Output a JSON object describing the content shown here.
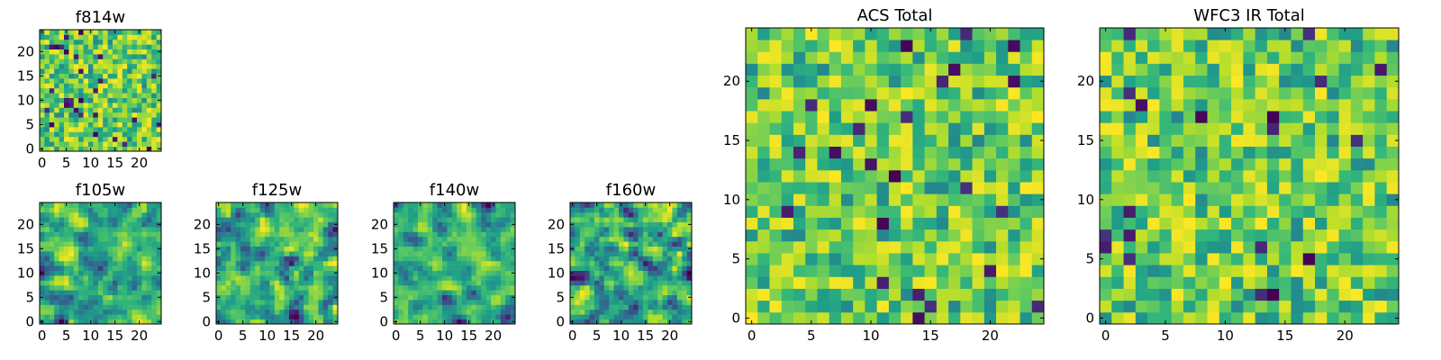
{
  "chart_data": [
    {
      "type": "heatmap",
      "title": "f814w",
      "grid": false,
      "colormap": "viridis",
      "xlim": [
        -0.5,
        24.5
      ],
      "ylim": [
        -0.5,
        24.5
      ],
      "xticks": [
        0,
        5,
        10,
        15,
        20
      ],
      "yticks": [
        0,
        5,
        10,
        15,
        20
      ],
      "shape": [
        25,
        25
      ],
      "seed": 11,
      "smoothness": 0,
      "value_range": [
        0,
        1
      ]
    },
    {
      "type": "heatmap",
      "title": "f105w",
      "grid": false,
      "colormap": "viridis",
      "xlim": [
        -0.5,
        24.5
      ],
      "ylim": [
        -0.5,
        24.5
      ],
      "xticks": [
        0,
        5,
        10,
        15,
        20
      ],
      "yticks": [
        0,
        5,
        10,
        15,
        20
      ],
      "shape": [
        25,
        25
      ],
      "seed": 23,
      "smoothness": 1,
      "value_range": [
        0,
        1
      ]
    },
    {
      "type": "heatmap",
      "title": "f125w",
      "grid": false,
      "colormap": "viridis",
      "xlim": [
        -0.5,
        24.5
      ],
      "ylim": [
        -0.5,
        24.5
      ],
      "xticks": [
        0,
        5,
        10,
        15,
        20
      ],
      "yticks": [
        0,
        5,
        10,
        15,
        20
      ],
      "shape": [
        25,
        25
      ],
      "seed": 37,
      "smoothness": 1,
      "value_range": [
        0,
        1
      ]
    },
    {
      "type": "heatmap",
      "title": "f140w",
      "grid": false,
      "colormap": "viridis",
      "xlim": [
        -0.5,
        24.5
      ],
      "ylim": [
        -0.5,
        24.5
      ],
      "xticks": [
        0,
        5,
        10,
        15,
        20
      ],
      "yticks": [
        0,
        5,
        10,
        15,
        20
      ],
      "shape": [
        25,
        25
      ],
      "seed": 41,
      "smoothness": 1,
      "value_range": [
        0,
        1
      ]
    },
    {
      "type": "heatmap",
      "title": "f160w",
      "grid": false,
      "colormap": "viridis",
      "xlim": [
        -0.5,
        24.5
      ],
      "ylim": [
        -0.5,
        24.5
      ],
      "xticks": [
        0,
        5,
        10,
        15,
        20
      ],
      "yticks": [
        0,
        5,
        10,
        15,
        20
      ],
      "shape": [
        25,
        25
      ],
      "seed": 53,
      "smoothness": 1,
      "value_range": [
        0,
        1
      ]
    },
    {
      "type": "heatmap",
      "title": "ACS Total",
      "grid": false,
      "colormap": "viridis",
      "xlim": [
        -0.5,
        24.5
      ],
      "ylim": [
        -0.5,
        24.5
      ],
      "xticks": [
        0,
        5,
        10,
        15,
        20
      ],
      "yticks": [
        0,
        5,
        10,
        15,
        20
      ],
      "shape": [
        25,
        25
      ],
      "seed": 67,
      "smoothness": 0,
      "value_range": [
        0,
        1
      ]
    },
    {
      "type": "heatmap",
      "title": "WFC3 IR Total",
      "grid": false,
      "colormap": "viridis",
      "xlim": [
        -0.5,
        24.5
      ],
      "ylim": [
        -0.5,
        24.5
      ],
      "xticks": [
        0,
        5,
        10,
        15,
        20
      ],
      "yticks": [
        0,
        5,
        10,
        15,
        20
      ],
      "shape": [
        25,
        25
      ],
      "seed": 79,
      "smoothness": 0,
      "value_range": [
        0,
        1
      ]
    }
  ]
}
